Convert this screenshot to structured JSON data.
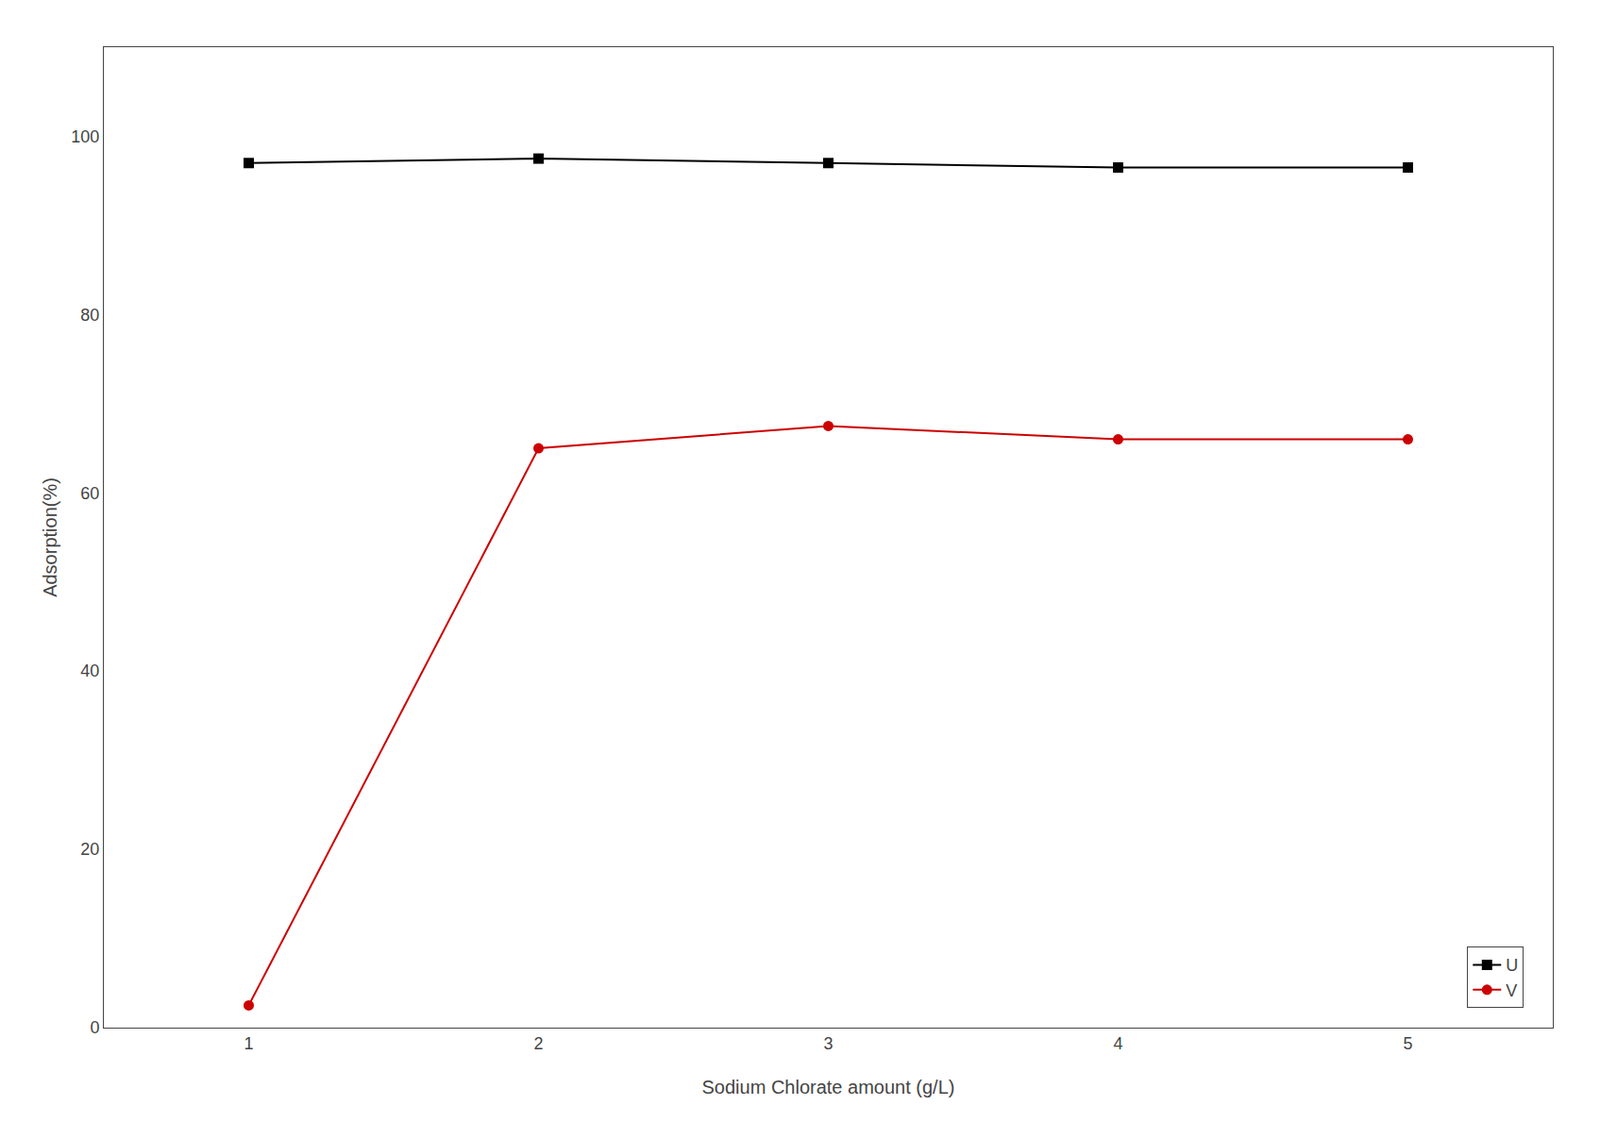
{
  "chart_data": {
    "type": "line",
    "x": [
      1,
      2,
      3,
      4,
      5
    ],
    "series": [
      {
        "name": "U",
        "color": "#000000",
        "marker": "square",
        "line_style": "solid",
        "values": [
          97.0,
          97.5,
          97.0,
          96.5,
          96.5
        ]
      },
      {
        "name": "V",
        "color": "#cc0000",
        "marker": "circle",
        "line_style": "solid",
        "values": [
          2.5,
          65.0,
          67.5,
          66.0,
          66.0
        ]
      }
    ],
    "xlabel": "Sodium Chlorate amount (g/L)",
    "ylabel": "Adsorption(%)",
    "xlim": [
      0.5,
      5.5
    ],
    "ylim": [
      0,
      110
    ],
    "xticks": [
      1,
      2,
      3,
      4,
      5
    ],
    "yticks": [
      0,
      20,
      40,
      60,
      80,
      100
    ],
    "grid": false,
    "legend": "lower right"
  }
}
